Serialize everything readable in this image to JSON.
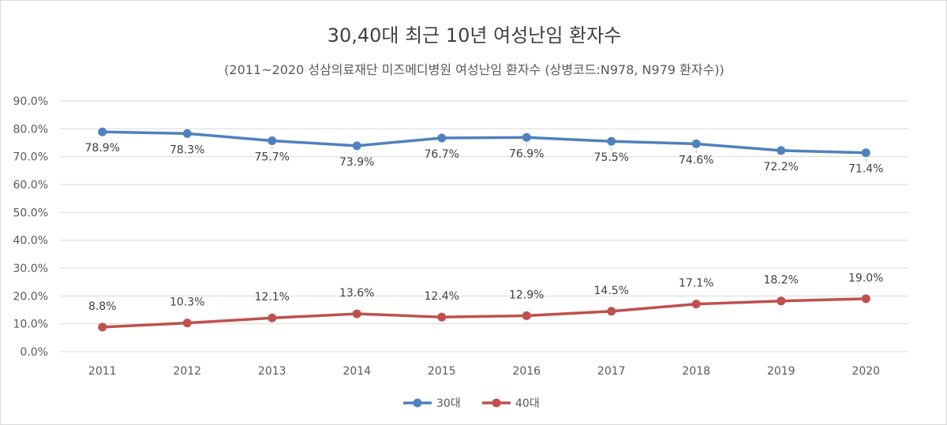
{
  "chart_data": {
    "type": "line",
    "title": "30,40대 최근 10년 여성난임 환자수",
    "subtitle": "(2011~2020  성삼의료재단 미즈메디병원  여성난임 환자수 (상병코드:N978, N979 환자수))",
    "categories": [
      "2011",
      "2012",
      "2013",
      "2014",
      "2015",
      "2016",
      "2017",
      "2018",
      "2019",
      "2020"
    ],
    "series": [
      {
        "name": "30대",
        "color": "#4f81bd",
        "values": [
          78.9,
          78.3,
          75.7,
          73.9,
          76.7,
          76.9,
          75.5,
          74.6,
          72.2,
          71.4
        ],
        "labels": [
          "78.9%",
          "78.3%",
          "75.7%",
          "73.9%",
          "76.7%",
          "76.9%",
          "75.5%",
          "74.6%",
          "72.2%",
          "71.4%"
        ],
        "label_position": "below"
      },
      {
        "name": "40대",
        "color": "#c0504d",
        "values": [
          8.8,
          10.3,
          12.1,
          13.6,
          12.4,
          12.9,
          14.5,
          17.1,
          18.2,
          19.0
        ],
        "labels": [
          "8.8%",
          "10.3%",
          "12.1%",
          "13.6%",
          "12.4%",
          "12.9%",
          "14.5%",
          "17.1%",
          "18.2%",
          "19.0%"
        ],
        "label_position": "above"
      }
    ],
    "y_ticks": [
      "0.0%",
      "10.0%",
      "20.0%",
      "30.0%",
      "40.0%",
      "50.0%",
      "60.0%",
      "70.0%",
      "80.0%",
      "90.0%"
    ],
    "ylim": [
      0,
      90
    ],
    "xlabel": "",
    "ylabel": "",
    "grid": true,
    "legend_position": "bottom"
  }
}
